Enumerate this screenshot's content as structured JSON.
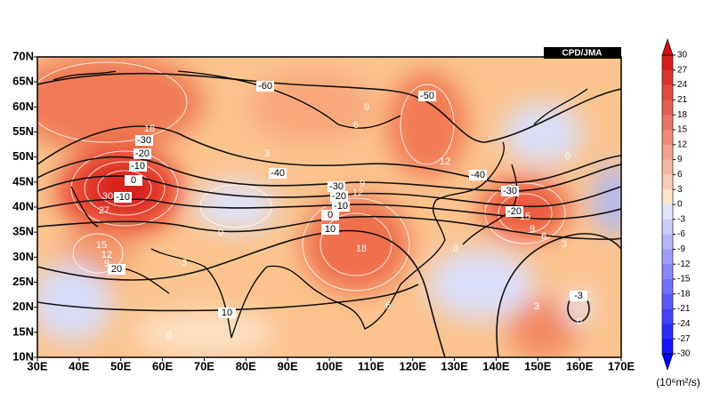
{
  "map": {
    "credit": "CPD/JMA",
    "lon_labels": [
      "30E",
      "40E",
      "50E",
      "60E",
      "70E",
      "80E",
      "90E",
      "100E",
      "110E",
      "120E",
      "130E",
      "140E",
      "150E",
      "160E",
      "170E"
    ],
    "lat_labels": [
      "70N",
      "65N",
      "60N",
      "55N",
      "50N",
      "45N",
      "40N",
      "35N",
      "30N",
      "25N",
      "20N",
      "15N",
      "10N"
    ],
    "contour_labels": [
      "-60",
      "-50",
      "9",
      "6",
      "18",
      "-30",
      "-20",
      "-10",
      "0",
      "30",
      "-10",
      "27",
      "3",
      "-40",
      "12",
      "-40",
      "-30",
      "9",
      "-20",
      "12",
      "-10",
      "0",
      "-30",
      "-20",
      "15",
      "9",
      "6",
      "3",
      "10",
      "18",
      "0",
      "0",
      "0",
      "15",
      "12",
      "9",
      "20",
      "3",
      "10",
      "6",
      "3",
      "-3",
      "0",
      "0"
    ]
  },
  "colorbar": {
    "labels": [
      30,
      27,
      24,
      21,
      18,
      15,
      12,
      9,
      6,
      3,
      0,
      -3,
      -6,
      -9,
      -12,
      -15,
      -18,
      -21,
      -24,
      -27,
      -30
    ],
    "unit": "(10⁶m²/s)"
  }
}
